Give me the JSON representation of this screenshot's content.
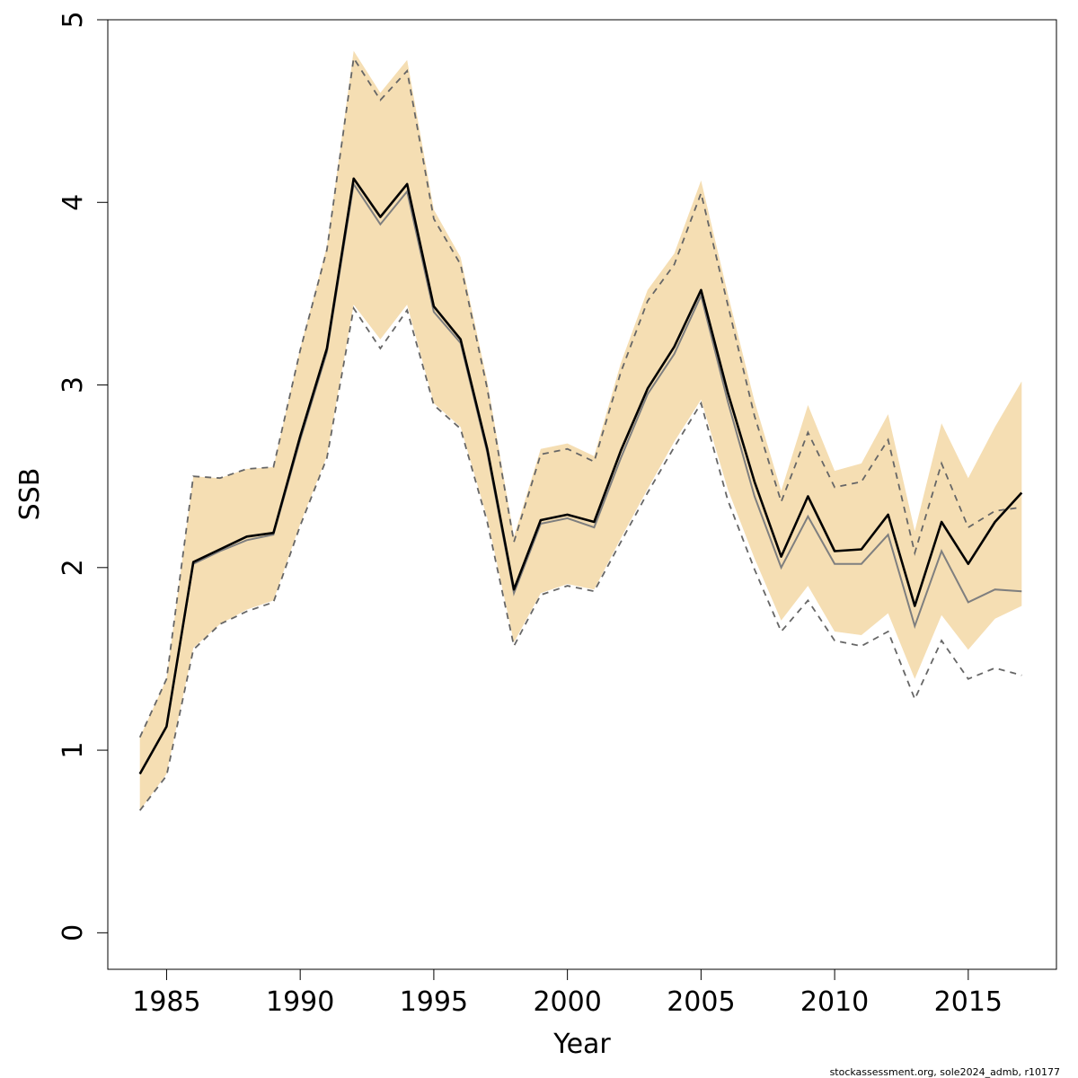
{
  "chart_data": {
    "type": "line",
    "xlabel": "Year",
    "ylabel": "SSB",
    "xlim": [
      1982.8,
      2018.3
    ],
    "ylim": [
      -0.2,
      5.0
    ],
    "x_ticks": [
      1985,
      1990,
      1995,
      2000,
      2005,
      2010,
      2015
    ],
    "y_ticks": [
      0,
      1,
      2,
      3,
      4,
      5
    ],
    "grid": false,
    "legend": "none",
    "colors": {
      "band": "#f5deb3",
      "main_line": "#000000",
      "retro_line": "#7f7f7f",
      "dashed": "#666666"
    },
    "x": [
      1984,
      1985,
      1986,
      1987,
      1988,
      1989,
      1990,
      1991,
      1992,
      1993,
      1994,
      1995,
      1996,
      1997,
      1998,
      1999,
      2000,
      2001,
      2002,
      2003,
      2004,
      2005,
      2006,
      2007,
      2008,
      2009,
      2010,
      2011,
      2012,
      2013,
      2014,
      2015,
      2016,
      2017
    ],
    "series": [
      {
        "role": "estimate",
        "values": [
          0.87,
          1.13,
          2.03,
          2.1,
          2.17,
          2.19,
          2.72,
          3.2,
          4.13,
          3.92,
          4.1,
          3.43,
          3.25,
          2.65,
          1.88,
          2.26,
          2.29,
          2.25,
          2.64,
          2.98,
          3.21,
          3.52,
          2.96,
          2.47,
          2.06,
          2.39,
          2.09,
          2.1,
          2.29,
          1.79,
          2.25,
          2.02,
          2.25,
          2.41
        ]
      },
      {
        "role": "band_lower",
        "values": [
          0.67,
          0.87,
          1.56,
          1.69,
          1.77,
          1.82,
          2.24,
          2.61,
          3.44,
          3.25,
          3.44,
          2.9,
          2.77,
          2.27,
          1.59,
          1.86,
          1.91,
          1.88,
          2.16,
          2.43,
          2.69,
          2.92,
          2.43,
          2.05,
          1.71,
          1.9,
          1.65,
          1.63,
          1.75,
          1.39,
          1.74,
          1.55,
          1.72,
          1.79
        ]
      },
      {
        "role": "band_upper",
        "values": [
          1.07,
          1.39,
          2.5,
          2.49,
          2.54,
          2.55,
          3.2,
          3.76,
          4.83,
          4.6,
          4.78,
          3.96,
          3.7,
          3.02,
          2.17,
          2.65,
          2.68,
          2.61,
          3.12,
          3.52,
          3.72,
          4.12,
          3.5,
          2.91,
          2.42,
          2.89,
          2.53,
          2.57,
          2.84,
          2.2,
          2.79,
          2.49,
          2.77,
          3.02
        ]
      },
      {
        "role": "estimate_alt",
        "values": [
          0.87,
          1.13,
          2.02,
          2.09,
          2.15,
          2.18,
          2.7,
          3.18,
          4.1,
          3.88,
          4.06,
          3.4,
          3.23,
          2.63,
          1.86,
          2.24,
          2.27,
          2.22,
          2.6,
          2.95,
          3.17,
          3.49,
          2.91,
          2.39,
          2.0,
          2.28,
          2.02,
          2.02,
          2.18,
          1.68,
          2.09,
          1.81,
          1.88,
          1.87
        ]
      },
      {
        "role": "alt_lower",
        "values": [
          0.67,
          0.86,
          1.55,
          1.69,
          1.76,
          1.81,
          2.23,
          2.6,
          3.42,
          3.2,
          3.41,
          2.89,
          2.76,
          2.25,
          1.57,
          1.85,
          1.9,
          1.87,
          2.14,
          2.41,
          2.66,
          2.9,
          2.37,
          1.99,
          1.65,
          1.82,
          1.6,
          1.57,
          1.65,
          1.28,
          1.6,
          1.39,
          1.45,
          1.41
        ]
      },
      {
        "role": "alt_upper",
        "values": [
          1.07,
          1.39,
          2.5,
          2.49,
          2.54,
          2.55,
          3.19,
          3.74,
          4.79,
          4.56,
          4.72,
          3.91,
          3.66,
          2.98,
          2.14,
          2.62,
          2.65,
          2.58,
          3.07,
          3.46,
          3.66,
          4.05,
          3.44,
          2.83,
          2.36,
          2.74,
          2.44,
          2.47,
          2.7,
          2.08,
          2.57,
          2.22,
          2.31,
          2.33
        ]
      }
    ],
    "footnote": "stockassessment.org, sole2024_admb, r10177"
  }
}
